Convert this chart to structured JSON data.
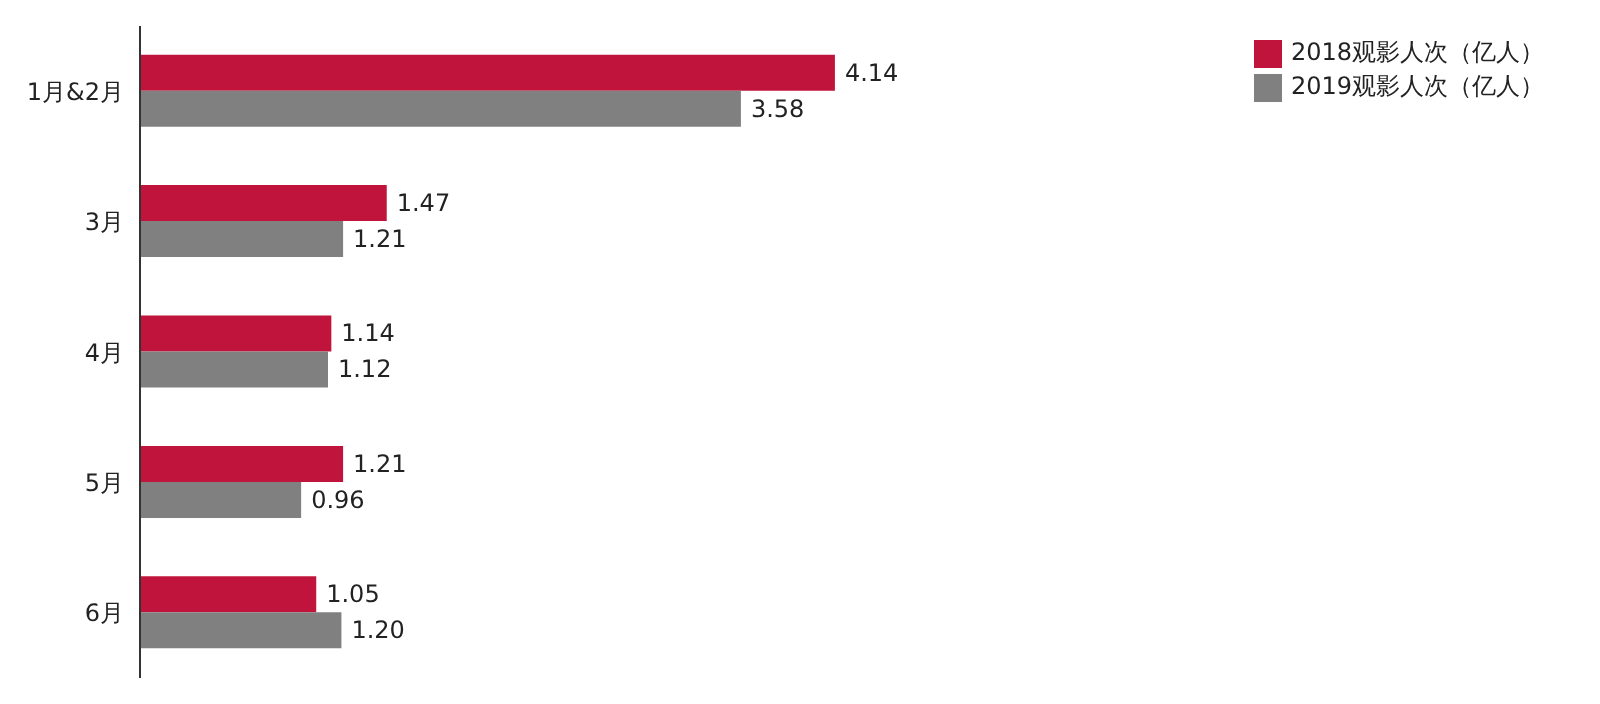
{
  "chart_data": {
    "type": "bar",
    "orientation": "horizontal",
    "categories": [
      "1月&2月",
      "3月",
      "4月",
      "5月",
      "6月"
    ],
    "series": [
      {
        "name": "2018观影人次（亿人）",
        "color": "#c0143c",
        "values": [
          4.14,
          1.47,
          1.14,
          1.21,
          1.05
        ],
        "value_labels": [
          "4.14",
          "1.47",
          "1.14",
          "1.21",
          "1.05"
        ]
      },
      {
        "name": "2019观影人次（亿人）",
        "color": "#808080",
        "values": [
          3.58,
          1.21,
          1.12,
          0.96,
          1.2
        ],
        "value_labels": [
          "3.58",
          "1.21",
          "1.12",
          "0.96",
          "1.20"
        ]
      }
    ],
    "tick_labels": "y",
    "legend": "top right"
  }
}
